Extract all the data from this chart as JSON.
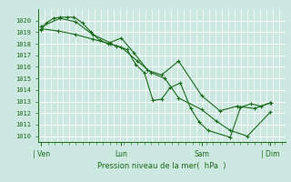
{
  "bg_color": "#cce8e0",
  "grid_color": "#ffffff",
  "line_color": "#1a6b1a",
  "marker_color": "#1a6b1a",
  "xlabel": "Pression niveau de la mer(  hPa  )",
  "xlabel_color": "#1a6b1a",
  "tick_color": "#1a6b1a",
  "ylim": [
    1009.5,
    1021.0
  ],
  "yticks": [
    1010,
    1011,
    1012,
    1013,
    1014,
    1015,
    1016,
    1017,
    1018,
    1019,
    1020
  ],
  "day_labels": [
    "| Ven",
    "Lun",
    "Sam",
    "| Dim"
  ],
  "day_positions": [
    0.0,
    2.33,
    4.67,
    6.67
  ],
  "series": [
    {
      "x": [
        0.0,
        0.15,
        0.35,
        0.55,
        0.75,
        0.95,
        1.2,
        1.45,
        1.7,
        1.95,
        2.2,
        2.5,
        2.75,
        3.0,
        3.25,
        3.5,
        3.75,
        4.05,
        4.35,
        4.6,
        4.85,
        5.5,
        5.8,
        6.1,
        6.4,
        6.7
      ],
      "y": [
        1019.2,
        1019.8,
        1020.2,
        1020.3,
        1020.3,
        1020.3,
        1019.8,
        1019.0,
        1018.3,
        1018.0,
        1017.8,
        1017.5,
        1016.2,
        1015.5,
        1013.1,
        1013.2,
        1014.2,
        1014.6,
        1012.4,
        1011.2,
        1010.5,
        1009.9,
        1012.5,
        1012.8,
        1012.6,
        1012.9
      ]
    },
    {
      "x": [
        0.0,
        0.55,
        1.0,
        1.5,
        2.0,
        2.33,
        2.7,
        3.1,
        3.5,
        4.0,
        4.67,
        5.2,
        5.7,
        6.2,
        6.67
      ],
      "y": [
        1019.5,
        1020.2,
        1019.9,
        1018.8,
        1018.1,
        1018.5,
        1017.2,
        1015.7,
        1015.3,
        1016.5,
        1013.5,
        1012.2,
        1012.6,
        1012.4,
        1012.9
      ]
    },
    {
      "x": [
        0.0,
        0.5,
        1.0,
        1.5,
        2.0,
        2.33,
        2.8,
        3.2,
        3.6,
        4.0,
        4.67,
        5.1,
        5.5,
        6.0,
        6.67
      ],
      "y": [
        1019.3,
        1019.1,
        1018.8,
        1018.4,
        1018.0,
        1017.7,
        1016.5,
        1015.5,
        1015.0,
        1013.3,
        1012.3,
        1011.3,
        1010.5,
        1010.0,
        1012.1
      ]
    }
  ],
  "xlim": [
    -0.1,
    7.1
  ],
  "n_vgrid": 40
}
